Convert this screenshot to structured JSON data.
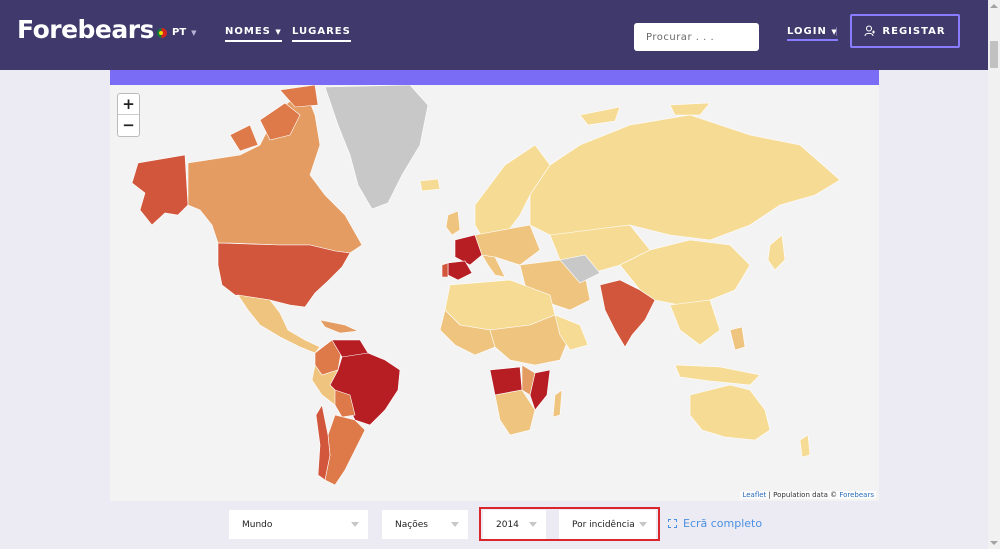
{
  "header": {
    "logo": "Forebears",
    "language": "PT",
    "nav": [
      {
        "label": "NOMES",
        "has_dropdown": true
      },
      {
        "label": "LUGARES",
        "has_dropdown": false
      }
    ],
    "search_placeholder": "Procurar . . .",
    "login_label": "LOGIN",
    "register_label": "REGISTAR"
  },
  "map": {
    "zoom_in": "+",
    "zoom_out": "−",
    "attribution": {
      "leaflet": "Leaflet",
      "text": "| Population data ©",
      "source": "Forebears"
    },
    "legend_colors": {
      "very_high": "#b71e24",
      "high": "#d1563c",
      "medium_high": "#de7a4a",
      "medium": "#e49c63",
      "low": "#efc47f",
      "very_low": "#f6db94",
      "no_data": "#c8c8c8"
    }
  },
  "controls": {
    "region": "Mundo",
    "level": "Nações",
    "year": "2014",
    "metric": "Por incidência",
    "fullscreen": "Ecrã completo"
  },
  "colors": {
    "header_bg": "#3f3a6b",
    "accent": "#7b6cf6",
    "highlight": "#d9262c",
    "link": "#4a90e2"
  }
}
